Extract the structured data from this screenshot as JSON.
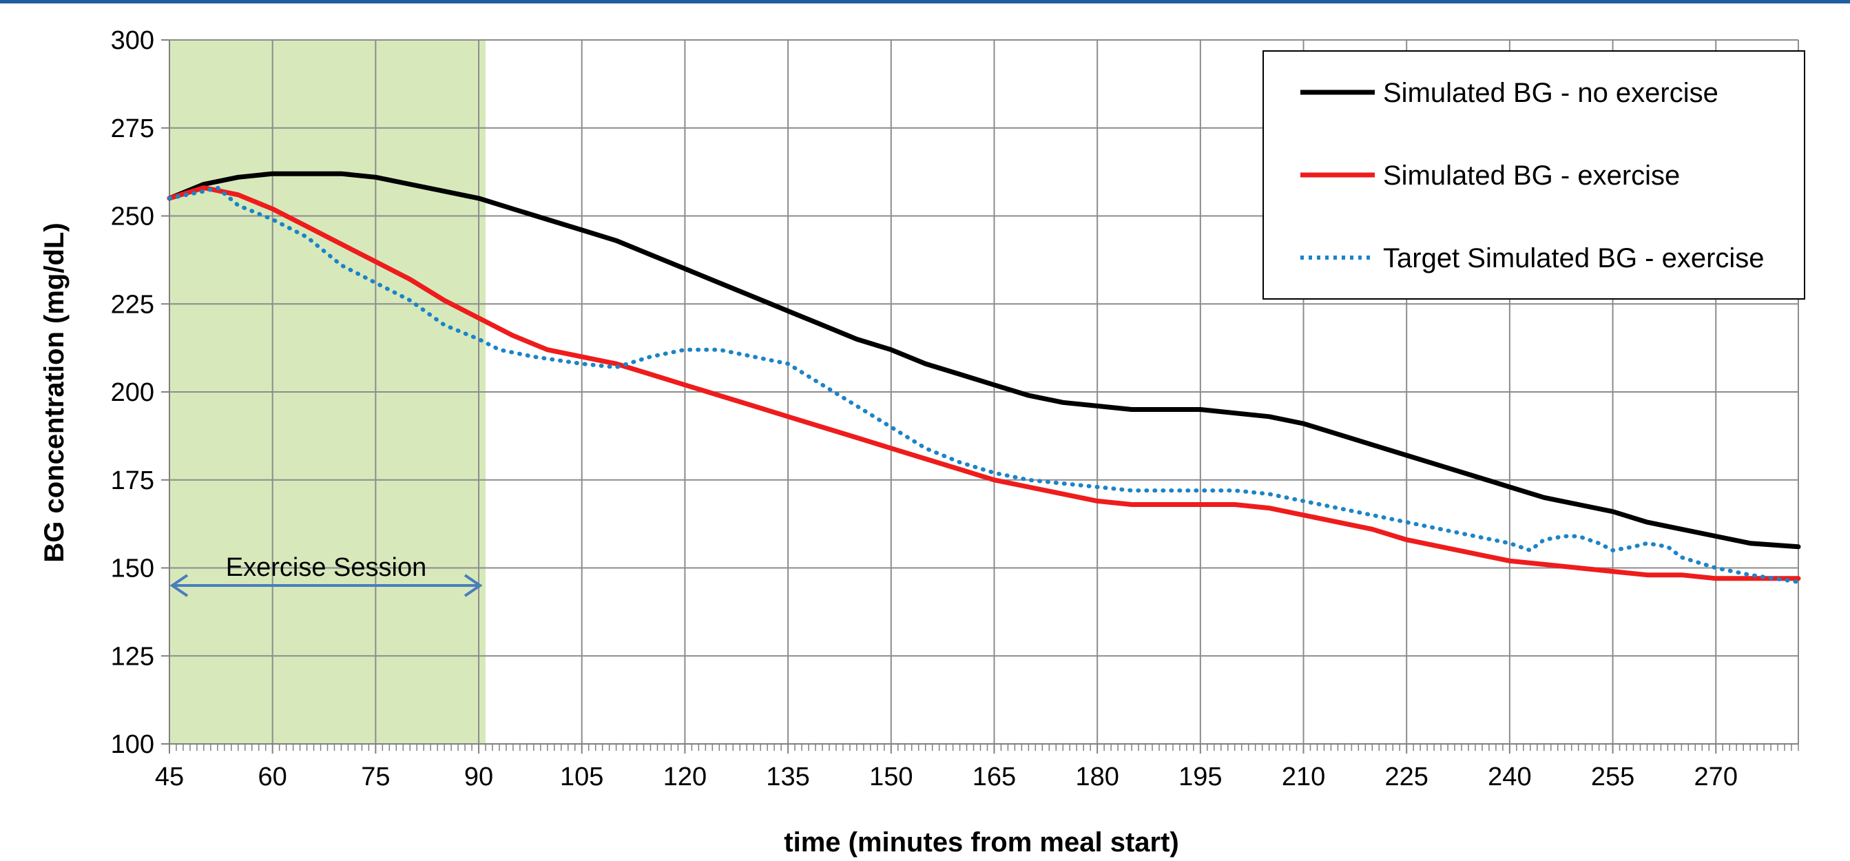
{
  "chart_data": {
    "type": "line",
    "xlabel": "time (minutes from meal start)",
    "ylabel": "BG concentration (mg/dL)",
    "xlim": [
      45,
      282
    ],
    "ylim": [
      100,
      300
    ],
    "x_ticks": [
      45,
      60,
      75,
      90,
      105,
      120,
      135,
      150,
      165,
      180,
      195,
      210,
      225,
      240,
      255,
      270
    ],
    "y_ticks": [
      100,
      125,
      150,
      175,
      200,
      225,
      250,
      275,
      300
    ],
    "grid": true,
    "legend_position": "top-right",
    "shaded_region": {
      "x": [
        45,
        91
      ],
      "color": "#d7e9bb",
      "label": "Exercise Session"
    },
    "series": [
      {
        "name": "Simulated BG - no exercise",
        "color": "#000000",
        "style": "solid",
        "x": [
          45,
          50,
          55,
          60,
          65,
          70,
          75,
          80,
          85,
          90,
          95,
          100,
          105,
          110,
          115,
          120,
          125,
          130,
          135,
          140,
          145,
          150,
          155,
          160,
          165,
          170,
          175,
          180,
          185,
          190,
          195,
          200,
          205,
          210,
          215,
          220,
          225,
          230,
          235,
          240,
          245,
          250,
          255,
          260,
          265,
          270,
          275,
          282
        ],
        "values": [
          255,
          259,
          261,
          262,
          262,
          262,
          261,
          259,
          257,
          255,
          252,
          249,
          246,
          243,
          239,
          235,
          231,
          227,
          223,
          219,
          215,
          212,
          208,
          205,
          202,
          199,
          197,
          196,
          195,
          195,
          195,
          194,
          193,
          191,
          188,
          185,
          182,
          179,
          176,
          173,
          170,
          168,
          166,
          163,
          161,
          159,
          157,
          156
        ]
      },
      {
        "name": "Simulated BG - exercise",
        "color": "#ee1c1c",
        "style": "solid",
        "x": [
          45,
          50,
          55,
          60,
          65,
          70,
          75,
          80,
          85,
          90,
          95,
          100,
          105,
          110,
          115,
          120,
          125,
          130,
          135,
          140,
          145,
          150,
          155,
          160,
          165,
          170,
          175,
          180,
          185,
          190,
          195,
          200,
          205,
          210,
          215,
          220,
          225,
          230,
          235,
          240,
          245,
          250,
          255,
          260,
          265,
          270,
          275,
          282
        ],
        "values": [
          255,
          258,
          256,
          252,
          247,
          242,
          237,
          232,
          226,
          221,
          216,
          212,
          210,
          208,
          205,
          202,
          199,
          196,
          193,
          190,
          187,
          184,
          181,
          178,
          175,
          173,
          171,
          169,
          168,
          168,
          168,
          168,
          167,
          165,
          163,
          161,
          158,
          156,
          154,
          152,
          151,
          150,
          149,
          148,
          148,
          147,
          147,
          147
        ]
      },
      {
        "name": "Target Simulated BG - exercise",
        "color": "#1b84c8",
        "style": "dotted",
        "x": [
          45,
          50,
          52,
          55,
          60,
          65,
          70,
          75,
          80,
          85,
          90,
          93,
          98,
          105,
          110,
          115,
          120,
          125,
          130,
          135,
          140,
          145,
          150,
          155,
          160,
          165,
          170,
          175,
          180,
          185,
          190,
          195,
          200,
          205,
          210,
          215,
          220,
          225,
          230,
          235,
          240,
          243,
          245,
          248,
          250,
          253,
          255,
          258,
          260,
          263,
          265,
          270,
          275,
          282
        ],
        "values": [
          255,
          257,
          258,
          253,
          249,
          244,
          236,
          231,
          226,
          219,
          215,
          212,
          210,
          208,
          207,
          210,
          212,
          212,
          210,
          208,
          202,
          196,
          190,
          184,
          180,
          177,
          175,
          174,
          173,
          172,
          172,
          172,
          172,
          171,
          169,
          167,
          165,
          163,
          161,
          159,
          157,
          155,
          158,
          159,
          159,
          157,
          155,
          156,
          157,
          156,
          153,
          150,
          148,
          146
        ]
      }
    ]
  }
}
